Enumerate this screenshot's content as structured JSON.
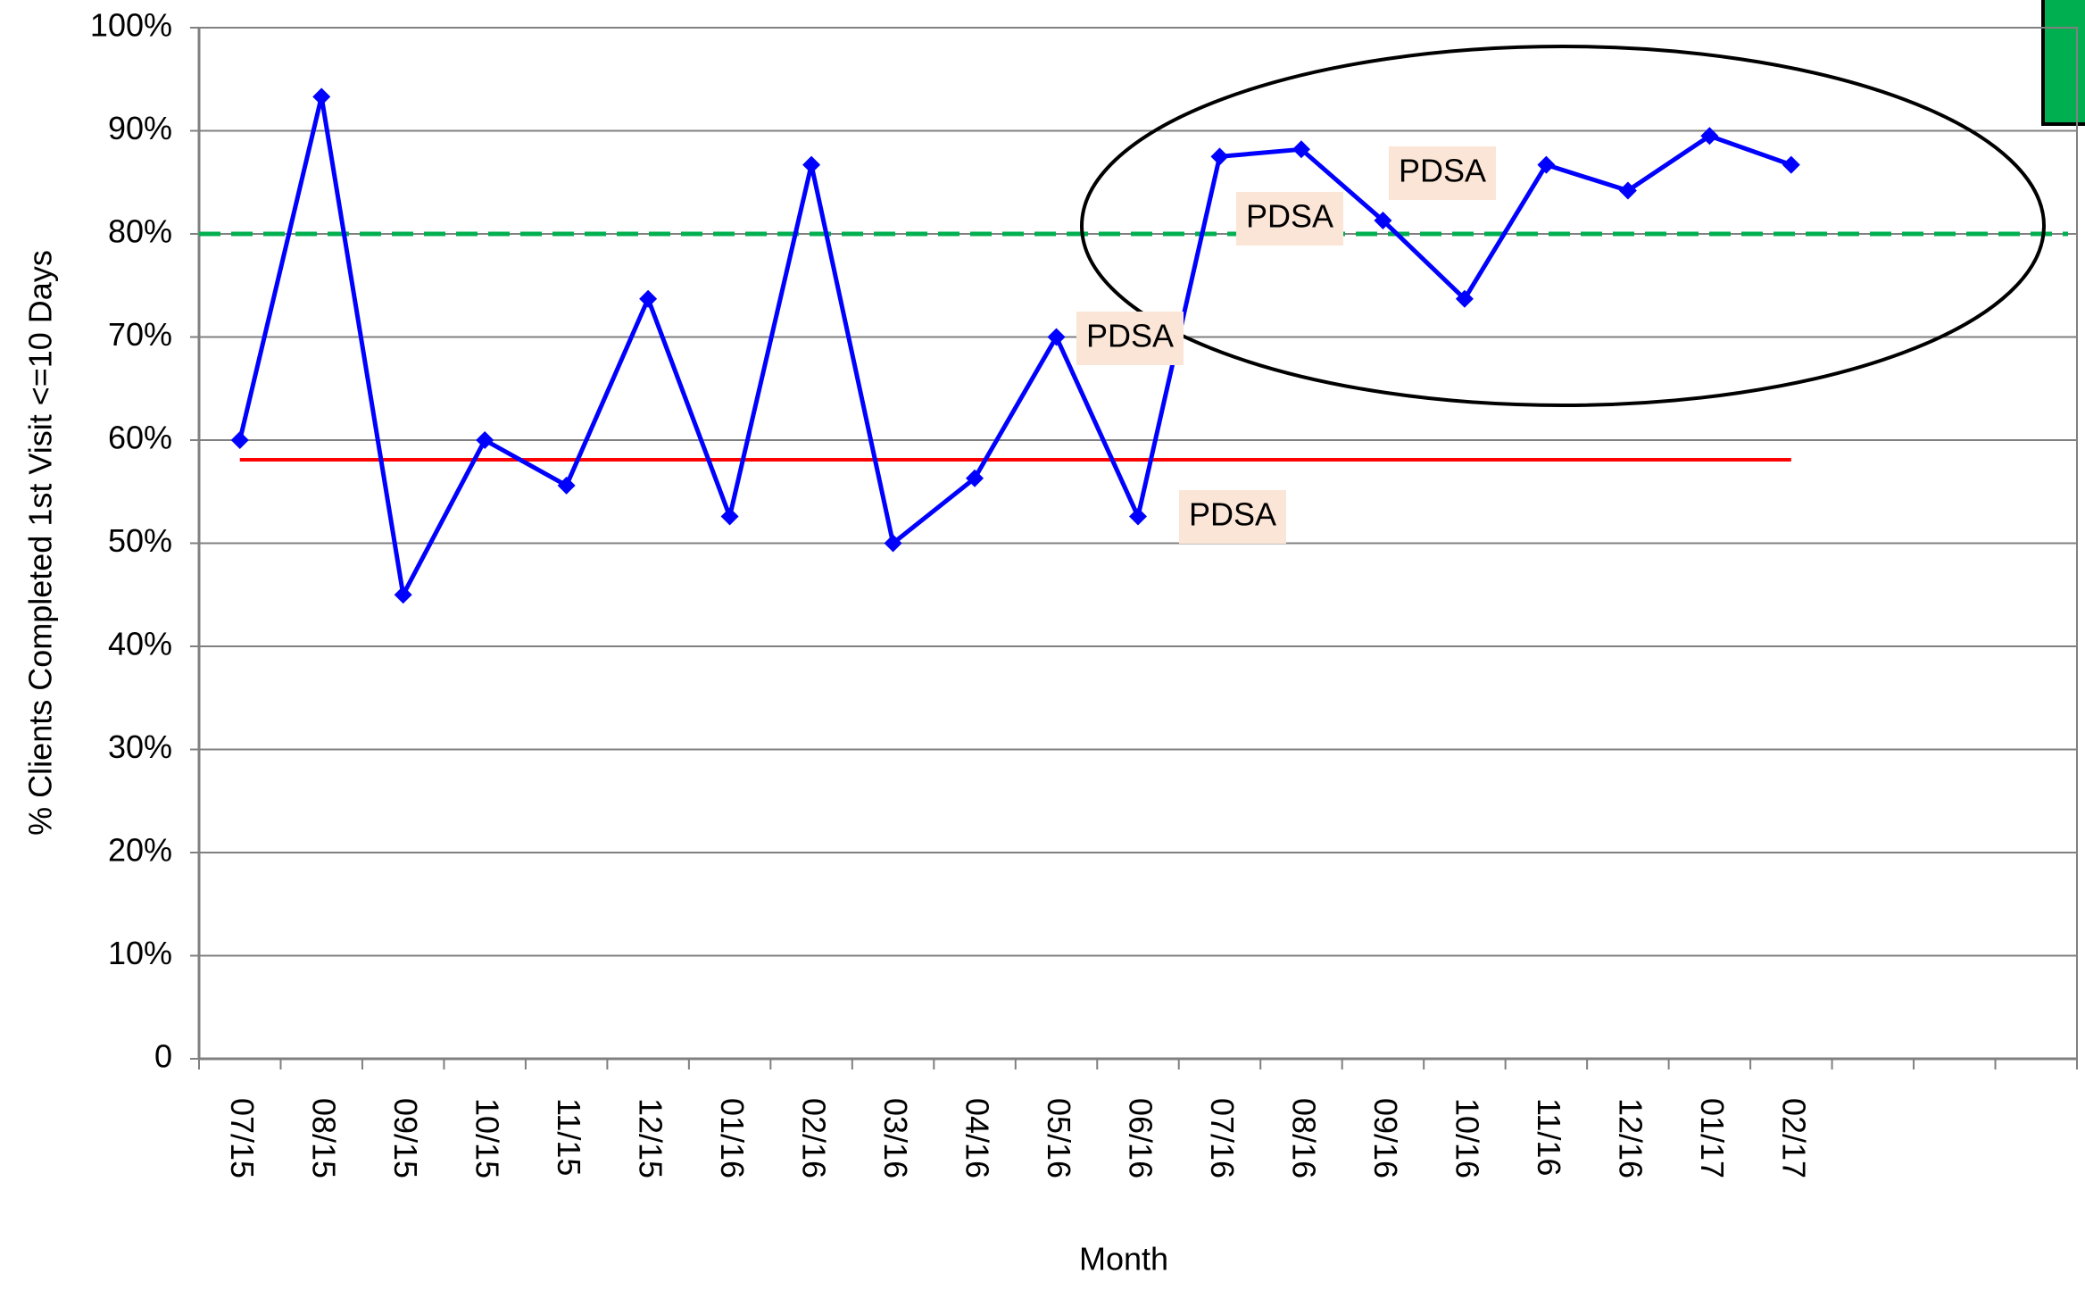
{
  "chart_data": {
    "type": "line",
    "x_label": "Month",
    "y_label": "% Clients Completed 1st Visit <=10 Days",
    "categories": [
      "07/15",
      "08/15",
      "09/15",
      "10/15",
      "11/15",
      "12/15",
      "01/16",
      "02/16",
      "03/16",
      "04/16",
      "05/16",
      "06/16",
      "07/16",
      "08/16",
      "09/16",
      "10/16",
      "11/16",
      "12/16",
      "01/17",
      "02/17",
      null,
      null,
      null
    ],
    "series": [
      {
        "color": "#0000ff",
        "values": [
          60,
          93.3,
          45,
          60,
          55.6,
          73.7,
          52.6,
          86.7,
          50,
          56.3,
          70,
          52.6,
          87.5,
          88.2,
          81.3,
          73.7,
          86.7,
          84.2,
          89.5,
          86.7,
          null,
          null,
          null
        ]
      }
    ],
    "reference_lines": [
      {
        "value": 58.1,
        "color": "#ff0000",
        "style": "solid"
      },
      {
        "value": 80,
        "color": "#00b050",
        "style": "dashed"
      }
    ],
    "annotations": [
      "PDSA",
      "PDSA",
      "PDSA",
      "PDSA"
    ],
    "ylim": [
      0,
      100
    ],
    "yticks": [
      0,
      {
        "value": 10,
        "label": "10%"
      },
      {
        "value": 20,
        "label": "20%"
      },
      {
        "value": 30,
        "label": "30%"
      },
      {
        "value": 40,
        "label": "40%"
      },
      {
        "value": 50,
        "label": "50%"
      },
      {
        "value": 60,
        "label": "60%"
      },
      {
        "value": 70,
        "label": "70%"
      },
      {
        "value": 80,
        "label": "80%"
      },
      {
        "value": 90,
        "label": "90%"
      },
      {
        "value": 100,
        "label": "100%"
      }
    ],
    "grid": true
  }
}
